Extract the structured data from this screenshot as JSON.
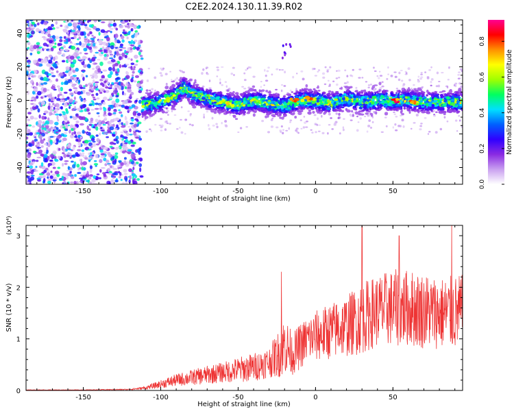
{
  "title": "C2E2.2024.130.11.39.R02",
  "chart_data": [
    {
      "type": "heatmap",
      "xlabel": "Height of straight line (km)",
      "ylabel": "Frequency (Hz)",
      "xlim": [
        -187,
        95
      ],
      "ylim": [
        -50,
        48
      ],
      "xticks": [
        -150,
        -100,
        -50,
        0,
        50
      ],
      "yticks": [
        -40,
        -20,
        0,
        20,
        40
      ],
      "colorbar": {
        "label": "Normalized spectral amplitude",
        "range": [
          0,
          0.92
        ],
        "ticks": [
          0.0,
          0.2,
          0.4,
          0.6,
          0.8
        ],
        "tick_labels": [
          "0.0",
          "0.2",
          "0.4",
          "0.6",
          "0.8"
        ],
        "colors": [
          "#ffffff",
          "#c9a0f0",
          "#8a2be2",
          "#3000ff",
          "#0060ff",
          "#00e0ff",
          "#00ff60",
          "#a0ff00",
          "#ffff00",
          "#ff9000",
          "#ff0000",
          "#ff0090"
        ]
      },
      "regions": [
        {
          "x": [
            -187,
            -112
          ],
          "description_level": "broadband noise",
          "typical_amplitude": 0.1
        },
        {
          "x": [
            -112,
            95
          ],
          "freq_center": 0,
          "band_halfwidth_hz": 6,
          "typical_amplitude": 0.25
        }
      ],
      "band_center_track": {
        "x": [
          -112,
          -100,
          -90,
          -85,
          -80,
          -70,
          -60,
          -50,
          -40,
          -30,
          -20,
          -10,
          0,
          10,
          20,
          30,
          40,
          50,
          60,
          70,
          80,
          95
        ],
        "freq": [
          -3,
          -1,
          3,
          8,
          4,
          1,
          -1,
          -3,
          0,
          -2,
          -3,
          0,
          0,
          -2,
          1,
          -1,
          0,
          0,
          0,
          -1,
          -1,
          -1
        ]
      },
      "hot_spots": [
        {
          "x": -14,
          "freq": 0,
          "amplitude": 0.9
        },
        {
          "x": -5,
          "freq": 1,
          "amplitude": 0.85
        },
        {
          "x": 52,
          "freq": 0,
          "amplitude": 0.9
        },
        {
          "x": 63,
          "freq": -1,
          "amplitude": 0.8
        }
      ],
      "isolated_feature": {
        "x": [
          -23,
          -16
        ],
        "freq": [
          25,
          34
        ]
      }
    },
    {
      "type": "line",
      "xlabel": "Height of straight line (km)",
      "ylabel": "SNR (10 * v/v)",
      "scale_label": "(x10⁴)",
      "xlim": [
        -187,
        95
      ],
      "ylim": [
        0,
        3.2
      ],
      "xticks": [
        -150,
        -100,
        -50,
        0,
        50
      ],
      "yticks": [
        0,
        1,
        2,
        3
      ],
      "color": "#ee3333",
      "envelope": {
        "x": [
          -187,
          -150,
          -120,
          -110,
          -100,
          -90,
          -80,
          -70,
          -60,
          -50,
          -40,
          -30,
          -22,
          -20,
          -15,
          -10,
          -5,
          0,
          10,
          20,
          30,
          40,
          50,
          60,
          70,
          80,
          95
        ],
        "mean": [
          0.01,
          0.01,
          0.02,
          0.05,
          0.12,
          0.2,
          0.25,
          0.3,
          0.35,
          0.4,
          0.45,
          0.55,
          0.75,
          0.9,
          0.7,
          0.85,
          1.0,
          1.05,
          1.15,
          1.25,
          1.4,
          1.55,
          1.6,
          1.6,
          1.55,
          1.5,
          1.5
        ],
        "spread": [
          0.005,
          0.005,
          0.01,
          0.03,
          0.08,
          0.12,
          0.15,
          0.18,
          0.2,
          0.25,
          0.28,
          0.3,
          0.5,
          0.6,
          0.4,
          0.45,
          0.45,
          0.5,
          0.55,
          0.6,
          0.7,
          0.7,
          0.75,
          0.75,
          0.75,
          0.7,
          0.75
        ]
      },
      "peaks": [
        {
          "x": -22,
          "y": 2.3
        },
        {
          "x": 30,
          "y": 3.2
        },
        {
          "x": 54,
          "y": 3.0
        },
        {
          "x": 88,
          "y": 3.2
        }
      ]
    }
  ]
}
